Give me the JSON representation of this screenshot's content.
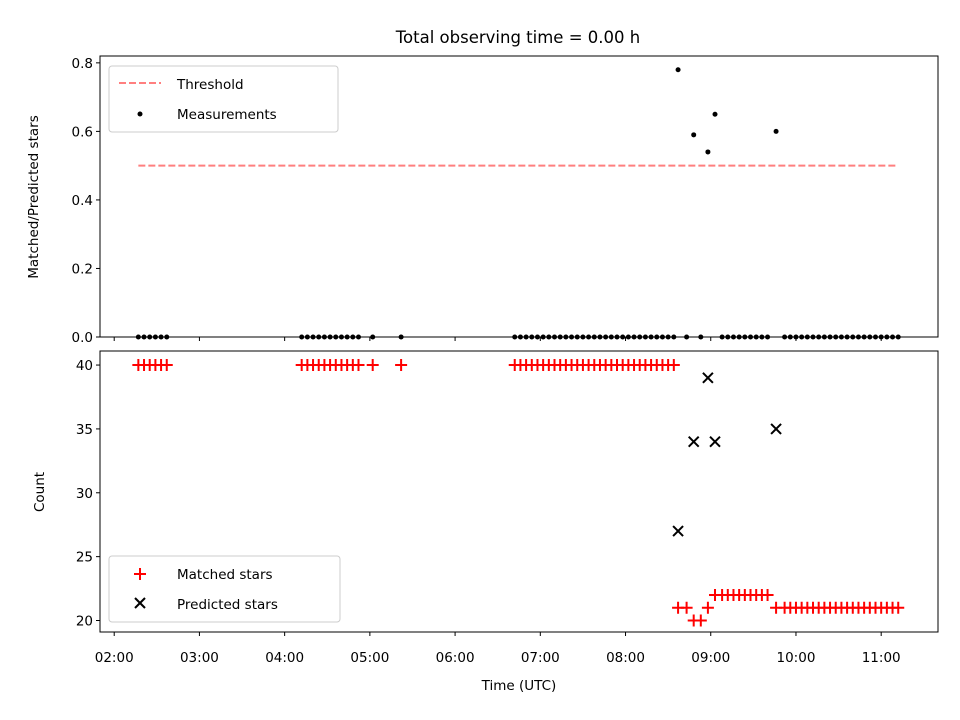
{
  "chart_data": {
    "type": "scatter",
    "title": "Total observing time = 0.00 h",
    "xlabel": "Time (UTC)",
    "x_ticks": [
      "02:00",
      "03:00",
      "04:00",
      "05:00",
      "06:00",
      "07:00",
      "08:00",
      "09:00",
      "10:00",
      "11:00"
    ],
    "xlim": [
      "01:50",
      "11:40"
    ],
    "panels": [
      {
        "id": "top",
        "ylabel": "Matched/Predicted stars",
        "ylim": [
          0,
          0.82
        ],
        "y_ticks": [
          "0.0",
          "0.2",
          "0.4",
          "0.6",
          "0.8"
        ],
        "legend": {
          "position": "upper left",
          "entries": [
            "Threshold",
            "Measurements"
          ]
        },
        "threshold": {
          "name": "Threshold",
          "value": 0.5,
          "x_start": "02:17",
          "x_end": "11:10",
          "color": "#ff7f7f",
          "style": "dashed"
        },
        "series": [
          {
            "name": "Measurements",
            "marker": "dot",
            "color": "#000000",
            "points": [
              [
                "02:17",
                0.0
              ],
              [
                "02:21",
                0.0
              ],
              [
                "02:25",
                0.0
              ],
              [
                "02:29",
                0.0
              ],
              [
                "02:33",
                0.0
              ],
              [
                "02:37",
                0.0
              ],
              [
                "04:12",
                0.0
              ],
              [
                "04:16",
                0.0
              ],
              [
                "04:20",
                0.0
              ],
              [
                "04:24",
                0.0
              ],
              [
                "04:28",
                0.0
              ],
              [
                "04:32",
                0.0
              ],
              [
                "04:36",
                0.0
              ],
              [
                "04:40",
                0.0
              ],
              [
                "04:44",
                0.0
              ],
              [
                "04:48",
                0.0
              ],
              [
                "04:52",
                0.0
              ],
              [
                "05:02",
                0.0
              ],
              [
                "05:22",
                0.0
              ],
              [
                "06:42",
                0.0
              ],
              [
                "06:46",
                0.0
              ],
              [
                "06:50",
                0.0
              ],
              [
                "06:54",
                0.0
              ],
              [
                "06:58",
                0.0
              ],
              [
                "07:02",
                0.0
              ],
              [
                "07:06",
                0.0
              ],
              [
                "07:10",
                0.0
              ],
              [
                "07:14",
                0.0
              ],
              [
                "07:18",
                0.0
              ],
              [
                "07:22",
                0.0
              ],
              [
                "07:26",
                0.0
              ],
              [
                "07:30",
                0.0
              ],
              [
                "07:34",
                0.0
              ],
              [
                "07:38",
                0.0
              ],
              [
                "07:42",
                0.0
              ],
              [
                "07:46",
                0.0
              ],
              [
                "07:50",
                0.0
              ],
              [
                "07:54",
                0.0
              ],
              [
                "07:58",
                0.0
              ],
              [
                "08:02",
                0.0
              ],
              [
                "08:06",
                0.0
              ],
              [
                "08:10",
                0.0
              ],
              [
                "08:14",
                0.0
              ],
              [
                "08:18",
                0.0
              ],
              [
                "08:22",
                0.0
              ],
              [
                "08:26",
                0.0
              ],
              [
                "08:30",
                0.0
              ],
              [
                "08:34",
                0.0
              ],
              [
                "08:37",
                0.78
              ],
              [
                "08:43",
                0.0
              ],
              [
                "08:48",
                0.59
              ],
              [
                "08:53",
                0.0
              ],
              [
                "08:58",
                0.54
              ],
              [
                "09:03",
                0.65
              ],
              [
                "09:08",
                0.0
              ],
              [
                "09:12",
                0.0
              ],
              [
                "09:16",
                0.0
              ],
              [
                "09:20",
                0.0
              ],
              [
                "09:24",
                0.0
              ],
              [
                "09:28",
                0.0
              ],
              [
                "09:32",
                0.0
              ],
              [
                "09:36",
                0.0
              ],
              [
                "09:40",
                0.0
              ],
              [
                "09:46",
                0.6
              ],
              [
                "09:52",
                0.0
              ],
              [
                "09:56",
                0.0
              ],
              [
                "10:00",
                0.0
              ],
              [
                "10:04",
                0.0
              ],
              [
                "10:08",
                0.0
              ],
              [
                "10:12",
                0.0
              ],
              [
                "10:16",
                0.0
              ],
              [
                "10:20",
                0.0
              ],
              [
                "10:24",
                0.0
              ],
              [
                "10:28",
                0.0
              ],
              [
                "10:32",
                0.0
              ],
              [
                "10:36",
                0.0
              ],
              [
                "10:40",
                0.0
              ],
              [
                "10:44",
                0.0
              ],
              [
                "10:48",
                0.0
              ],
              [
                "10:52",
                0.0
              ],
              [
                "10:56",
                0.0
              ],
              [
                "11:00",
                0.0
              ],
              [
                "11:04",
                0.0
              ],
              [
                "11:08",
                0.0
              ],
              [
                "11:12",
                0.0
              ]
            ]
          }
        ]
      },
      {
        "id": "bottom",
        "ylabel": "Count",
        "ylim": [
          19.1,
          41.1
        ],
        "y_ticks": [
          "20",
          "25",
          "30",
          "35",
          "40"
        ],
        "legend": {
          "position": "lower left",
          "entries": [
            "Matched stars",
            "Predicted stars"
          ]
        },
        "series": [
          {
            "name": "Matched stars",
            "marker": "plus",
            "color": "#ff0000",
            "points": [
              [
                "02:17",
                40
              ],
              [
                "02:21",
                40
              ],
              [
                "02:25",
                40
              ],
              [
                "02:29",
                40
              ],
              [
                "02:33",
                40
              ],
              [
                "02:37",
                40
              ],
              [
                "04:12",
                40
              ],
              [
                "04:16",
                40
              ],
              [
                "04:20",
                40
              ],
              [
                "04:24",
                40
              ],
              [
                "04:28",
                40
              ],
              [
                "04:32",
                40
              ],
              [
                "04:36",
                40
              ],
              [
                "04:40",
                40
              ],
              [
                "04:44",
                40
              ],
              [
                "04:48",
                40
              ],
              [
                "04:52",
                40
              ],
              [
                "05:02",
                40
              ],
              [
                "05:22",
                40
              ],
              [
                "06:42",
                40
              ],
              [
                "06:46",
                40
              ],
              [
                "06:50",
                40
              ],
              [
                "06:54",
                40
              ],
              [
                "06:58",
                40
              ],
              [
                "07:02",
                40
              ],
              [
                "07:06",
                40
              ],
              [
                "07:10",
                40
              ],
              [
                "07:14",
                40
              ],
              [
                "07:18",
                40
              ],
              [
                "07:22",
                40
              ],
              [
                "07:26",
                40
              ],
              [
                "07:30",
                40
              ],
              [
                "07:34",
                40
              ],
              [
                "07:38",
                40
              ],
              [
                "07:42",
                40
              ],
              [
                "07:46",
                40
              ],
              [
                "07:50",
                40
              ],
              [
                "07:54",
                40
              ],
              [
                "07:58",
                40
              ],
              [
                "08:02",
                40
              ],
              [
                "08:06",
                40
              ],
              [
                "08:10",
                40
              ],
              [
                "08:14",
                40
              ],
              [
                "08:18",
                40
              ],
              [
                "08:22",
                40
              ],
              [
                "08:26",
                40
              ],
              [
                "08:30",
                40
              ],
              [
                "08:34",
                40
              ],
              [
                "08:37",
                21
              ],
              [
                "08:43",
                21
              ],
              [
                "08:48",
                20
              ],
              [
                "08:53",
                20
              ],
              [
                "08:58",
                21
              ],
              [
                "09:03",
                22
              ],
              [
                "09:08",
                22
              ],
              [
                "09:12",
                22
              ],
              [
                "09:16",
                22
              ],
              [
                "09:20",
                22
              ],
              [
                "09:24",
                22
              ],
              [
                "09:28",
                22
              ],
              [
                "09:32",
                22
              ],
              [
                "09:36",
                22
              ],
              [
                "09:40",
                22
              ],
              [
                "09:46",
                21
              ],
              [
                "09:52",
                21
              ],
              [
                "09:56",
                21
              ],
              [
                "10:00",
                21
              ],
              [
                "10:04",
                21
              ],
              [
                "10:08",
                21
              ],
              [
                "10:12",
                21
              ],
              [
                "10:16",
                21
              ],
              [
                "10:20",
                21
              ],
              [
                "10:24",
                21
              ],
              [
                "10:28",
                21
              ],
              [
                "10:32",
                21
              ],
              [
                "10:36",
                21
              ],
              [
                "10:40",
                21
              ],
              [
                "10:44",
                21
              ],
              [
                "10:48",
                21
              ],
              [
                "10:52",
                21
              ],
              [
                "10:56",
                21
              ],
              [
                "11:00",
                21
              ],
              [
                "11:04",
                21
              ],
              [
                "11:08",
                21
              ],
              [
                "11:12",
                21
              ]
            ]
          },
          {
            "name": "Predicted stars",
            "marker": "x",
            "color": "#000000",
            "points": [
              [
                "08:37",
                27
              ],
              [
                "08:48",
                34
              ],
              [
                "08:58",
                39
              ],
              [
                "09:03",
                34
              ],
              [
                "09:46",
                35
              ]
            ]
          }
        ]
      }
    ]
  }
}
